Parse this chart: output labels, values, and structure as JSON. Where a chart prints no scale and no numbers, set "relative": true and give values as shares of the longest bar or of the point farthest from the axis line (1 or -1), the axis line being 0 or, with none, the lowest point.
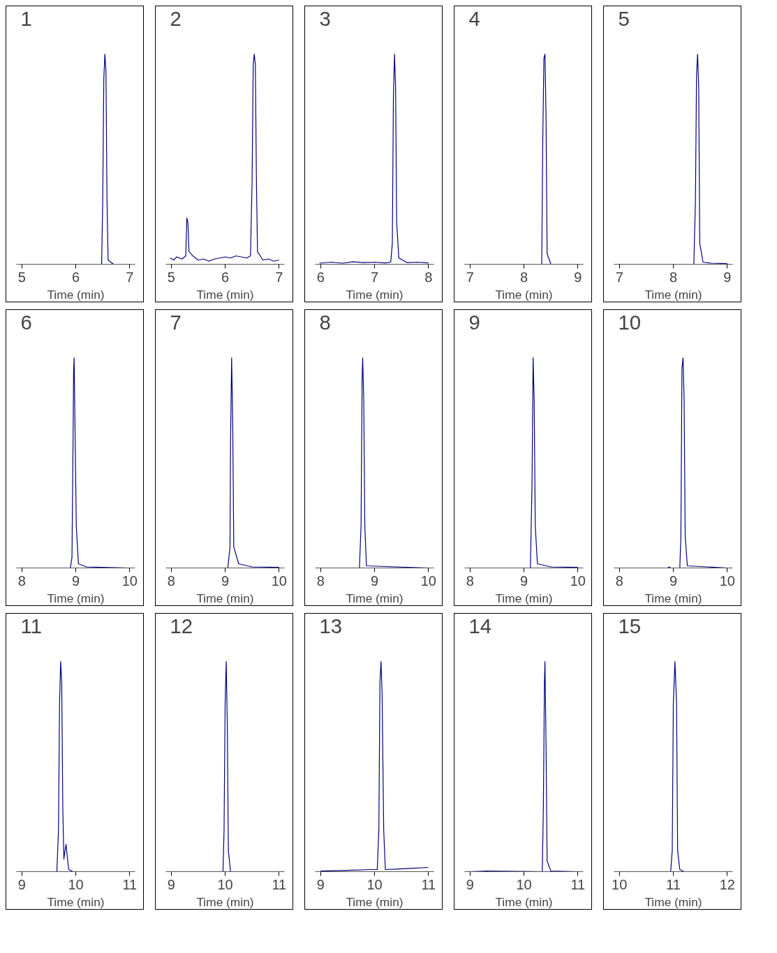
{
  "chart_data": [
    {
      "type": "line",
      "title": "1",
      "xlabel": "Time (min)",
      "relative": true,
      "xlim": [
        4.9,
        7.1
      ],
      "xticks": [
        5,
        6,
        7
      ],
      "grid": false,
      "series": [
        {
          "color": "#000080",
          "x": [
            4.98,
            6.48,
            6.5,
            6.52,
            6.54,
            6.56,
            6.58,
            6.6,
            6.7,
            7.0
          ],
          "values": [
            0,
            0,
            0.3,
            0.88,
            1,
            0.92,
            0.3,
            0.02,
            0,
            0
          ]
        }
      ]
    },
    {
      "type": "line",
      "title": "2",
      "xlabel": "Time (min)",
      "relative": true,
      "xlim": [
        4.9,
        7.1
      ],
      "xticks": [
        5,
        6,
        7
      ],
      "grid": false,
      "series": [
        {
          "color": "#000080",
          "x": [
            4.98,
            5.05,
            5.1,
            5.2,
            5.27,
            5.29,
            5.31,
            5.33,
            5.4,
            5.5,
            5.6,
            5.7,
            5.8,
            5.9,
            6.0,
            6.1,
            6.2,
            6.3,
            6.4,
            6.47,
            6.5,
            6.52,
            6.54,
            6.56,
            6.58,
            6.6,
            6.7,
            6.8,
            6.9,
            7.0
          ],
          "values": [
            0.03,
            0.02,
            0.035,
            0.025,
            0.04,
            0.22,
            0.2,
            0.06,
            0.04,
            0.02,
            0.025,
            0.015,
            0.025,
            0.03,
            0.035,
            0.03,
            0.04,
            0.035,
            0.03,
            0.04,
            0.4,
            0.95,
            1,
            0.95,
            0.4,
            0.06,
            0.02,
            0.025,
            0.015,
            0.02
          ]
        }
      ]
    },
    {
      "type": "line",
      "title": "3",
      "xlabel": "Time (min)",
      "relative": true,
      "xlim": [
        5.9,
        8.1
      ],
      "xticks": [
        6,
        7,
        8
      ],
      "grid": false,
      "series": [
        {
          "color": "#000080",
          "x": [
            5.98,
            6.2,
            6.4,
            6.6,
            6.8,
            7.0,
            7.2,
            7.3,
            7.33,
            7.35,
            7.37,
            7.39,
            7.41,
            7.45,
            7.6,
            7.8,
            8.0
          ],
          "values": [
            0.005,
            0.01,
            0.005,
            0.012,
            0.008,
            0.01,
            0.006,
            0.01,
            0.1,
            0.8,
            1,
            0.85,
            0.2,
            0.03,
            0.008,
            0.01,
            0.006
          ]
        }
      ]
    },
    {
      "type": "line",
      "title": "4",
      "xlabel": "Time (min)",
      "relative": true,
      "xlim": [
        6.9,
        9.1
      ],
      "xticks": [
        7,
        8,
        9
      ],
      "grid": false,
      "series": [
        {
          "color": "#000080",
          "x": [
            7,
            8.33,
            8.35,
            8.37,
            8.39,
            8.41,
            8.43,
            8.5,
            9
          ],
          "values": [
            0,
            0,
            0.6,
            0.98,
            1,
            0.7,
            0.05,
            0,
            0
          ]
        }
      ]
    },
    {
      "type": "line",
      "title": "5",
      "xlabel": "Time (min)",
      "relative": true,
      "xlim": [
        6.9,
        9.1
      ],
      "xticks": [
        7,
        8,
        9
      ],
      "grid": false,
      "series": [
        {
          "color": "#000080",
          "x": [
            7,
            8.38,
            8.41,
            8.43,
            8.45,
            8.47,
            8.49,
            8.55,
            8.7,
            9
          ],
          "values": [
            0,
            0,
            0.3,
            0.9,
            1,
            0.85,
            0.1,
            0.01,
            0.005,
            0.003
          ]
        }
      ]
    },
    {
      "type": "line",
      "title": "6",
      "xlabel": "Time (min)",
      "relative": true,
      "xlim": [
        7.9,
        10.1
      ],
      "xticks": [
        8,
        9,
        10
      ],
      "grid": false,
      "series": [
        {
          "color": "#000080",
          "x": [
            8,
            8.9,
            8.93,
            8.95,
            8.96,
            8.97,
            8.99,
            9.01,
            9.05,
            9.2,
            9.5,
            10
          ],
          "values": [
            0,
            0,
            0.05,
            0.6,
            0.93,
            1,
            0.6,
            0.2,
            0.02,
            0.005,
            0.003,
            0
          ]
        }
      ]
    },
    {
      "type": "line",
      "title": "7",
      "xlabel": "Time (min)",
      "relative": true,
      "xlim": [
        7.9,
        10.1
      ],
      "xticks": [
        8,
        9,
        10
      ],
      "grid": false,
      "series": [
        {
          "color": "#000080",
          "x": [
            8,
            9.05,
            9.09,
            9.1,
            9.12,
            9.14,
            9.16,
            9.25,
            9.5,
            10
          ],
          "values": [
            0,
            0,
            0.1,
            0.6,
            1,
            0.7,
            0.1,
            0.02,
            0.005,
            0.003
          ]
        }
      ]
    },
    {
      "type": "line",
      "title": "8",
      "xlabel": "Time (min)",
      "relative": true,
      "xlim": [
        7.9,
        10.1
      ],
      "xticks": [
        8,
        9,
        10
      ],
      "grid": false,
      "series": [
        {
          "color": "#000080",
          "x": [
            8,
            8.72,
            8.75,
            8.77,
            8.78,
            8.8,
            8.82,
            8.85,
            10
          ],
          "values": [
            0,
            0,
            0.2,
            0.9,
            1,
            0.8,
            0.2,
            0.01,
            0
          ]
        }
      ]
    },
    {
      "type": "line",
      "title": "9",
      "xlabel": "Time (min)",
      "relative": true,
      "xlim": [
        7.9,
        10.1
      ],
      "xticks": [
        8,
        9,
        10
      ],
      "grid": false,
      "series": [
        {
          "color": "#000080",
          "x": [
            8,
            9.12,
            9.15,
            9.17,
            9.19,
            9.21,
            9.25,
            9.5,
            10
          ],
          "values": [
            0,
            0,
            0.4,
            1,
            0.8,
            0.2,
            0.02,
            0.005,
            0.003
          ]
        }
      ]
    },
    {
      "type": "line",
      "title": "10",
      "xlabel": "Time (min)",
      "relative": true,
      "xlim": [
        7.9,
        10.1
      ],
      "xticks": [
        8,
        9,
        10
      ],
      "grid": false,
      "series": [
        {
          "color": "#000080",
          "x": [
            8,
            8.9,
            8.92,
            8.95,
            9.12,
            9.14,
            9.16,
            9.18,
            9.2,
            9.22,
            9.26,
            10
          ],
          "values": [
            0,
            0,
            0.005,
            0,
            0,
            0.15,
            0.95,
            1,
            0.8,
            0.15,
            0.01,
            0
          ]
        }
      ]
    },
    {
      "type": "line",
      "title": "11",
      "xlabel": "Time (min)",
      "relative": true,
      "xlim": [
        8.9,
        11.1
      ],
      "xticks": [
        9,
        10,
        11
      ],
      "grid": false,
      "series": [
        {
          "color": "#000080",
          "x": [
            9,
            9.65,
            9.68,
            9.7,
            9.72,
            9.74,
            9.76,
            9.78,
            9.79,
            9.82,
            9.84,
            9.87,
            9.95,
            11
          ],
          "values": [
            0,
            0,
            0.2,
            0.8,
            1,
            0.9,
            0.3,
            0.06,
            0.08,
            0.13,
            0.08,
            0.01,
            0,
            0
          ]
        }
      ]
    },
    {
      "type": "line",
      "title": "12",
      "xlabel": "Time (min)",
      "relative": true,
      "xlim": [
        8.9,
        11.1
      ],
      "xticks": [
        9,
        10,
        11
      ],
      "grid": false,
      "series": [
        {
          "color": "#000080",
          "x": [
            9,
            9.96,
            9.98,
            10.0,
            10.02,
            10.04,
            10.06,
            10.1,
            11
          ],
          "values": [
            0,
            0,
            0.2,
            0.8,
            1,
            0.7,
            0.1,
            0,
            0
          ]
        }
      ]
    },
    {
      "type": "line",
      "title": "13",
      "xlabel": "Time (min)",
      "relative": true,
      "xlim": [
        8.9,
        11.1
      ],
      "xticks": [
        9,
        10,
        11
      ],
      "grid": false,
      "series": [
        {
          "color": "#000080",
          "x": [
            9,
            9.5,
            9.9,
            10.05,
            10.08,
            10.1,
            10.12,
            10.14,
            10.17,
            10.2,
            10.4,
            10.7,
            11
          ],
          "values": [
            0.003,
            0.006,
            0.01,
            0.01,
            0.2,
            0.9,
            1,
            0.85,
            0.2,
            0.01,
            0.012,
            0.016,
            0.02
          ]
        }
      ]
    },
    {
      "type": "line",
      "title": "14",
      "xlabel": "Time (min)",
      "relative": true,
      "xlim": [
        8.9,
        11.1
      ],
      "xticks": [
        9,
        10,
        11
      ],
      "grid": false,
      "series": [
        {
          "color": "#000080",
          "x": [
            9,
            9.3,
            10.34,
            10.36,
            10.38,
            10.39,
            10.41,
            10.43,
            10.5,
            11
          ],
          "values": [
            0,
            0.003,
            0,
            0.3,
            0.9,
            1,
            0.6,
            0.05,
            0.003,
            0
          ]
        }
      ]
    },
    {
      "type": "line",
      "title": "15",
      "xlabel": "Time (min)",
      "relative": true,
      "xlim": [
        9.9,
        12.1
      ],
      "xticks": [
        10,
        11,
        12
      ],
      "grid": false,
      "series": [
        {
          "color": "#000080",
          "x": [
            10,
            10.95,
            10.98,
            11.0,
            11.03,
            11.06,
            11.08,
            11.12,
            11.2,
            12
          ],
          "values": [
            0,
            0,
            0.1,
            0.8,
            1,
            0.8,
            0.1,
            0.01,
            0,
            0
          ]
        }
      ]
    }
  ]
}
